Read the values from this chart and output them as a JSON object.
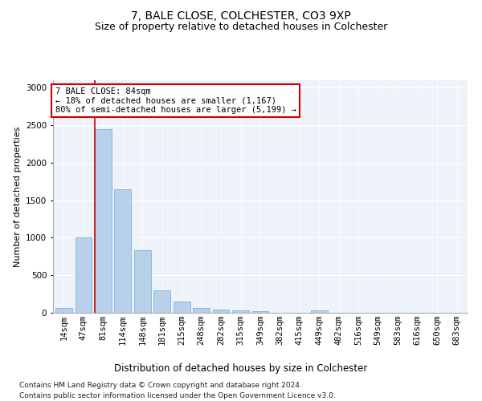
{
  "title": "7, BALE CLOSE, COLCHESTER, CO3 9XP",
  "subtitle": "Size of property relative to detached houses in Colchester",
  "xlabel": "Distribution of detached houses by size in Colchester",
  "ylabel": "Number of detached properties",
  "bar_color": "#b8d0ea",
  "bar_edge_color": "#6aaad4",
  "background_color": "#eef2f9",
  "vline_color": "#cc0000",
  "vline_x_index": 2,
  "annotation_text_line1": "7 BALE CLOSE: 84sqm",
  "annotation_text_line2": "← 18% of detached houses are smaller (1,167)",
  "annotation_text_line3": "80% of semi-detached houses are larger (5,199) →",
  "categories": [
    "14sqm",
    "47sqm",
    "81sqm",
    "114sqm",
    "148sqm",
    "181sqm",
    "215sqm",
    "248sqm",
    "282sqm",
    "315sqm",
    "349sqm",
    "382sqm",
    "415sqm",
    "449sqm",
    "482sqm",
    "516sqm",
    "549sqm",
    "583sqm",
    "616sqm",
    "650sqm",
    "683sqm"
  ],
  "values": [
    60,
    1000,
    2450,
    1650,
    830,
    300,
    150,
    60,
    40,
    30,
    20,
    0,
    0,
    30,
    0,
    0,
    0,
    0,
    0,
    0,
    0
  ],
  "ylim": [
    0,
    3100
  ],
  "yticks": [
    0,
    500,
    1000,
    1500,
    2000,
    2500,
    3000
  ],
  "footnote1": "Contains HM Land Registry data © Crown copyright and database right 2024.",
  "footnote2": "Contains public sector information licensed under the Open Government Licence v3.0.",
  "title_fontsize": 10,
  "subtitle_fontsize": 9,
  "ylabel_fontsize": 8,
  "xlabel_fontsize": 8.5,
  "tick_fontsize": 7.5,
  "annotation_fontsize": 7.5,
  "footnote_fontsize": 6.5
}
